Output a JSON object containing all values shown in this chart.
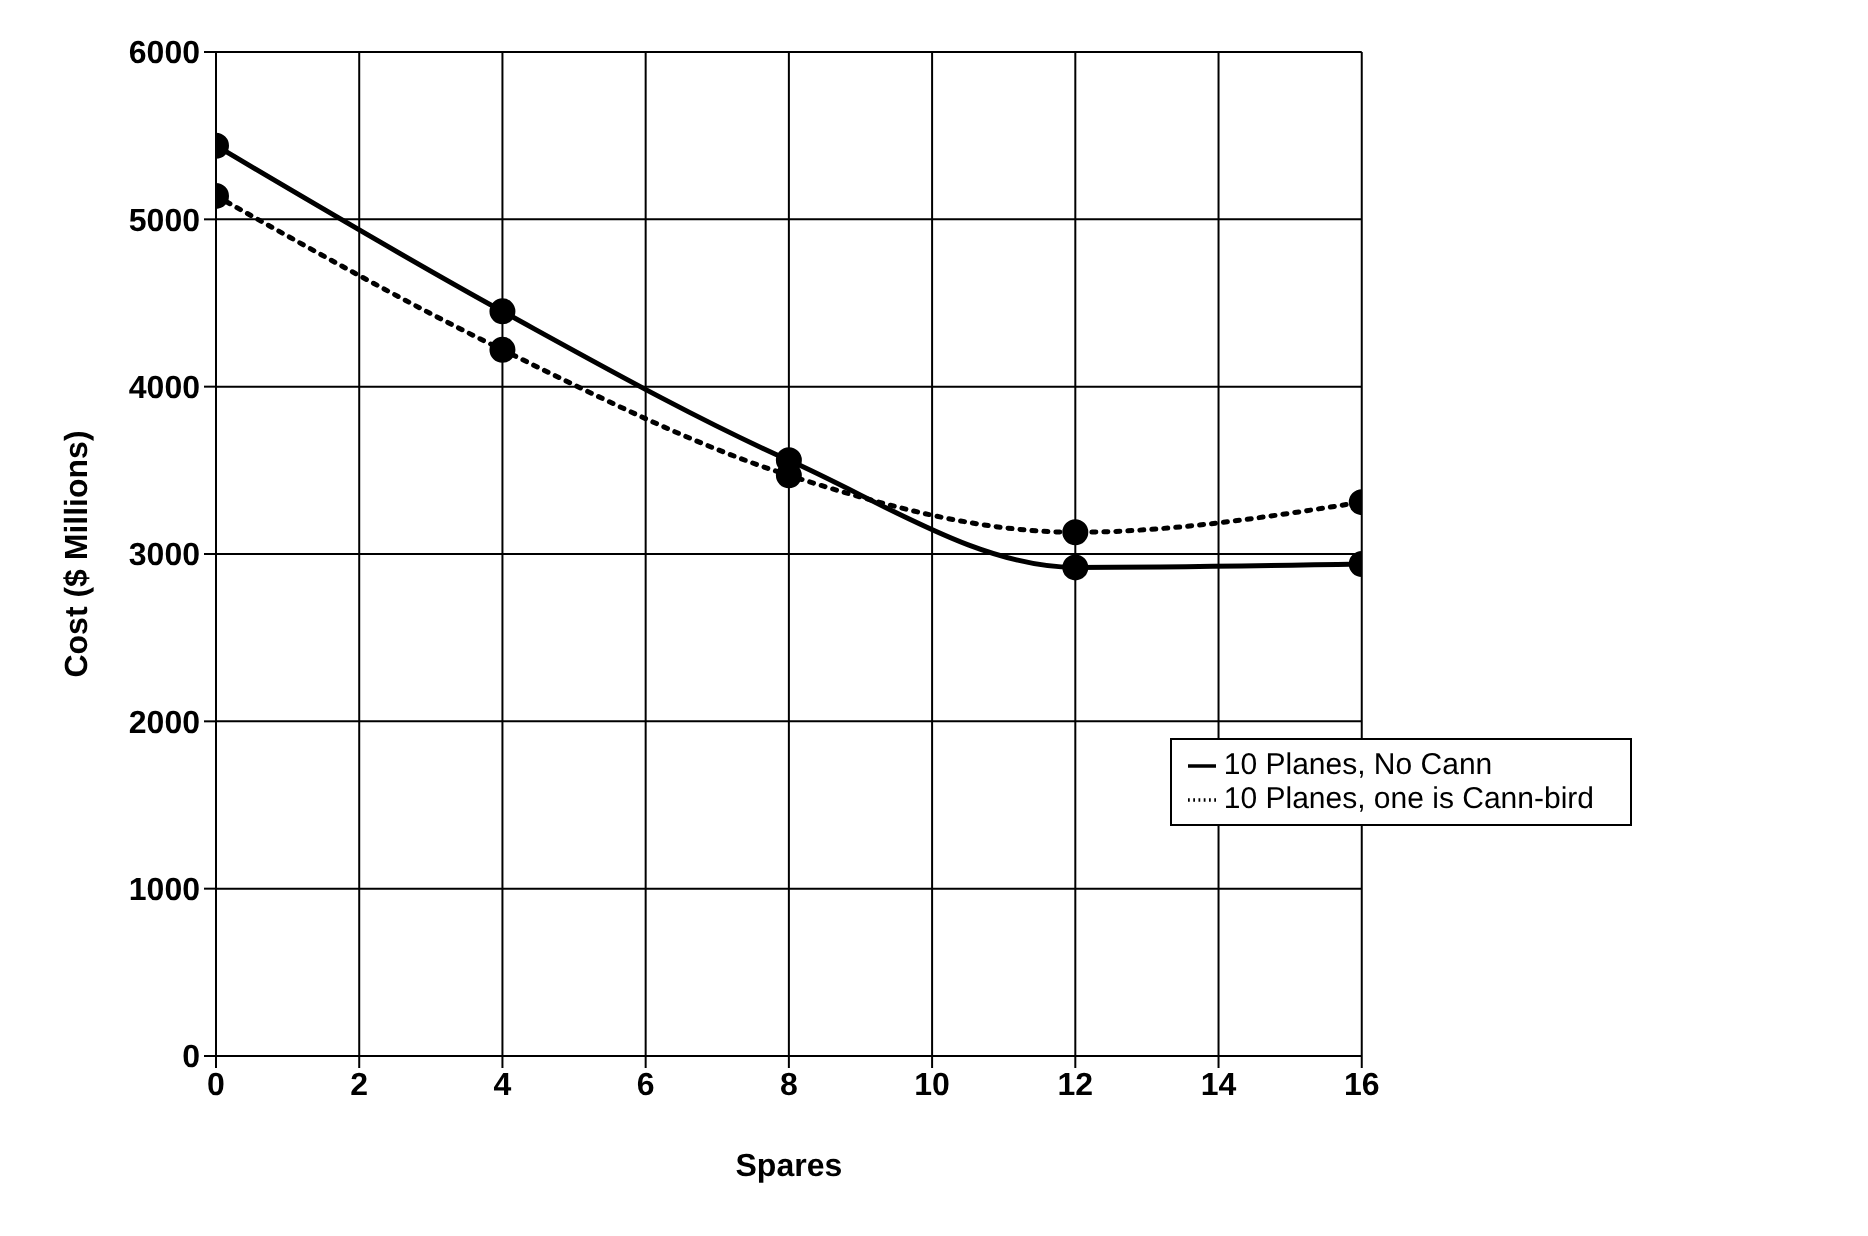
{
  "chart_data": {
    "type": "line",
    "xlabel": "Spares",
    "ylabel": "Cost ($ Millions)",
    "x": [
      0,
      4,
      8,
      12,
      16
    ],
    "series": [
      {
        "name": "10 Planes, one is Cann-bird",
        "color": "#000000",
        "values": [
          5140,
          4220,
          3470,
          3130,
          3310
        ],
        "line_style": "dotted"
      },
      {
        "name": "10 Planes, No Cann",
        "color": "#000000",
        "values": [
          5440,
          4450,
          3560,
          2920,
          2940
        ],
        "line_style": "solid"
      }
    ],
    "xlim": [
      0,
      16
    ],
    "xticks": [
      0,
      2,
      4,
      6,
      8,
      10,
      12,
      14,
      16
    ],
    "ylim": [
      0,
      6000
    ],
    "yticks": [
      0,
      1000,
      2000,
      3000,
      4000,
      5000,
      6000
    ],
    "grid": true,
    "legend": "right",
    "marker": "circle"
  }
}
